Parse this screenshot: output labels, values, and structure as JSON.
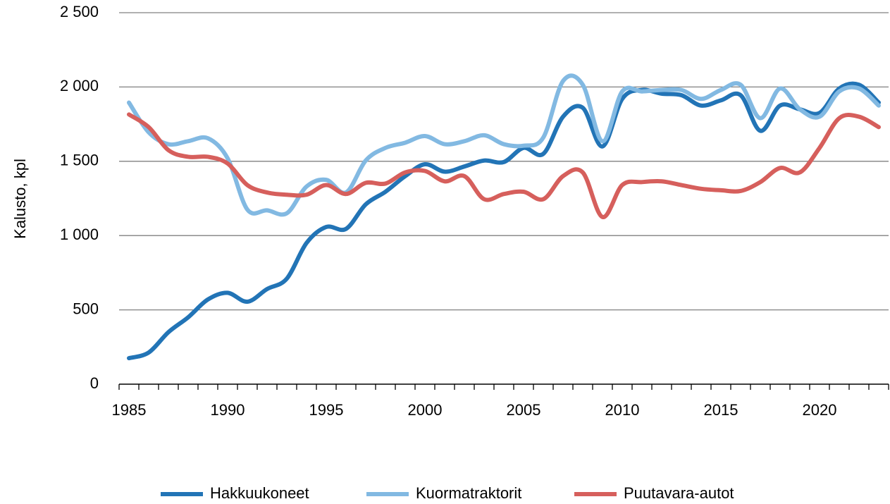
{
  "chart_data": {
    "type": "line",
    "y_label": "Kalusto, kpl",
    "categories": [
      "1985",
      null,
      null,
      null,
      null,
      "1990",
      null,
      null,
      null,
      null,
      "1995",
      null,
      null,
      null,
      null,
      "2000",
      null,
      null,
      null,
      null,
      "2005",
      null,
      null,
      null,
      null,
      "2010",
      null,
      null,
      null,
      null,
      "2015",
      null,
      null,
      null,
      null,
      "2020",
      null,
      null,
      null
    ],
    "series": [
      {
        "name": "Hakkuukoneet",
        "color": "#2274b6",
        "values": [
          175,
          213,
          350,
          450,
          570,
          615,
          555,
          640,
          710,
          950,
          1058,
          1045,
          1210,
          1295,
          1400,
          1480,
          1430,
          1465,
          1505,
          1495,
          1590,
          1550,
          1800,
          1860,
          1600,
          1920,
          1980,
          1955,
          1945,
          1875,
          1910,
          1945,
          1705,
          1875,
          1850,
          1825,
          1990,
          2015,
          1895
        ]
      },
      {
        "name": "Kuormatraktorit",
        "color": "#82b9e2",
        "values": [
          1895,
          1695,
          1615,
          1635,
          1655,
          1520,
          1175,
          1170,
          1150,
          1330,
          1375,
          1290,
          1505,
          1590,
          1625,
          1670,
          1615,
          1635,
          1675,
          1615,
          1605,
          1660,
          2040,
          2015,
          1635,
          1970,
          1970,
          1980,
          1980,
          1920,
          1980,
          2015,
          1790,
          1990,
          1850,
          1800,
          1970,
          1990,
          1875
        ]
      },
      {
        "name": "Puutavara-autot",
        "color": "#d65f5c",
        "values": [
          1815,
          1730,
          1575,
          1530,
          1530,
          1485,
          1340,
          1290,
          1275,
          1275,
          1340,
          1280,
          1355,
          1350,
          1425,
          1435,
          1365,
          1400,
          1245,
          1280,
          1295,
          1245,
          1400,
          1425,
          1125,
          1340,
          1360,
          1365,
          1340,
          1315,
          1305,
          1300,
          1360,
          1455,
          1425,
          1590,
          1790,
          1800,
          1730
        ]
      }
    ],
    "ylim": [
      0,
      2500
    ],
    "yticks": [
      0,
      500,
      {
        "value": 1000,
        "label": "1 000"
      },
      {
        "value": 1500,
        "label": "1 500"
      },
      {
        "value": 2000,
        "label": "2 000"
      },
      {
        "value": 2500,
        "label": "2 500"
      }
    ],
    "grid": true,
    "legend": "bottom"
  }
}
